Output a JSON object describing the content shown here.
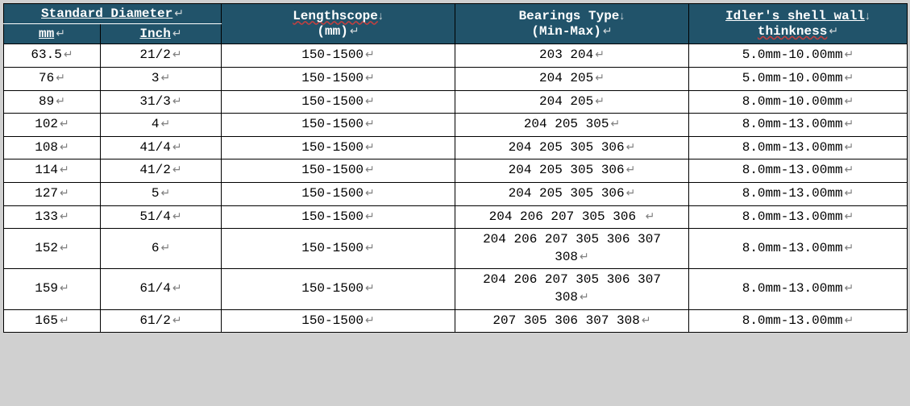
{
  "table": {
    "header_bg": "#21536a",
    "header_fg": "#ffffff",
    "border_color": "#000000",
    "wavy_color": "#c04040",
    "para_mark": "↵",
    "newline_mark": "↓",
    "headers": {
      "standard_diameter": "Standard Diameter",
      "mm": "mm",
      "inch": "Inch",
      "lengthscope_top": "Lengthscope",
      "lengthscope_bot": "(mm)",
      "bearings_top": "Bearings Type",
      "bearings_bot": "(Min-Max)",
      "wall_top": "Idler's shell wall",
      "wall_bot": "thinkness"
    },
    "rows": [
      {
        "mm": "63.5",
        "inch": "21/2",
        "len": "150-1500",
        "bear": "203 204",
        "wall": "5.0mm-10.00mm"
      },
      {
        "mm": "76",
        "inch": "3",
        "len": "150-1500",
        "bear": "204 205",
        "wall": "5.0mm-10.00mm"
      },
      {
        "mm": "89",
        "inch": "31/3",
        "len": "150-1500",
        "bear": "204 205",
        "wall": "8.0mm-10.00mm"
      },
      {
        "mm": "102",
        "inch": "4",
        "len": "150-1500",
        "bear": "204 205 305",
        "wall": "8.0mm-13.00mm"
      },
      {
        "mm": "108",
        "inch": "41/4",
        "len": "150-1500",
        "bear": "204 205 305 306",
        "wall": "8.0mm-13.00mm"
      },
      {
        "mm": "114",
        "inch": "41/2",
        "len": "150-1500",
        "bear": "204 205 305 306",
        "wall": "8.0mm-13.00mm"
      },
      {
        "mm": "127",
        "inch": "5",
        "len": "150-1500",
        "bear": "204 205 305 306",
        "wall": "8.0mm-13.00mm"
      },
      {
        "mm": "133",
        "inch": "51/4",
        "len": "150-1500",
        "bear": "204 206 207 305 306  ",
        "wall": "8.0mm-13.00mm"
      },
      {
        "mm": "152",
        "inch": "6",
        "len": "150-1500",
        "bear": "204 206 207 305 306 307\n308",
        "wall": "8.0mm-13.00mm"
      },
      {
        "mm": "159",
        "inch": "61/4",
        "len": "150-1500",
        "bear": "204 206 207 305 306 307\n308",
        "wall": "8.0mm-13.00mm"
      },
      {
        "mm": "165",
        "inch": "61/2",
        "len": "150-1500",
        "bear": "207 305 306 307 308",
        "wall": "8.0mm-13.00mm"
      }
    ]
  }
}
